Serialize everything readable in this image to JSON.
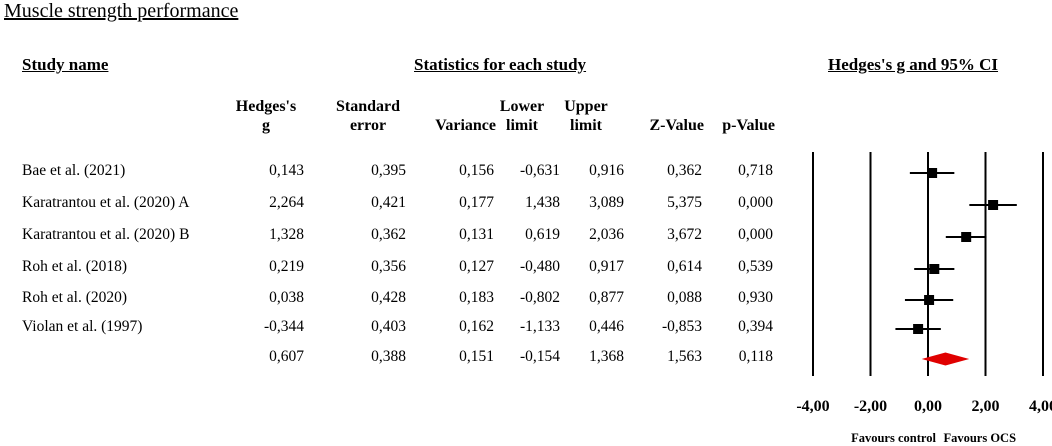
{
  "title": "Muscle strength performance",
  "headers": {
    "study_name": "Study name",
    "statistics": "Statistics for each study",
    "plot": "Hedges's g and 95% CI",
    "columns": [
      [
        "Hedges's",
        "g"
      ],
      [
        "Standard",
        "error"
      ],
      [
        "",
        "Variance"
      ],
      [
        "Lower",
        "limit"
      ],
      [
        "Upper",
        "limit"
      ],
      [
        "",
        "Z-Value"
      ],
      [
        "",
        "p-Value"
      ]
    ]
  },
  "chart_data": {
    "type": "forest",
    "xlim": [
      -4,
      4
    ],
    "xticks": [
      "-4,00",
      "-2,00",
      "0,00",
      "2,00",
      "4,00"
    ],
    "favours": [
      "Favours control",
      "Favours OCS"
    ],
    "rows": [
      {
        "study": "Bae et al. (2021)",
        "g": 0.143,
        "g_text": "0,143",
        "se": "0,395",
        "var": "0,156",
        "lower": -0.631,
        "lower_text": "-0,631",
        "upper": 0.916,
        "upper_text": "0,916",
        "z": "0,362",
        "p": "0,718"
      },
      {
        "study": "Karatrantou et al. (2020) A",
        "g": 2.264,
        "g_text": "2,264",
        "se": "0,421",
        "var": "0,177",
        "lower": 1.438,
        "lower_text": "1,438",
        "upper": 3.089,
        "upper_text": "3,089",
        "z": "5,375",
        "p": "0,000"
      },
      {
        "study": "Karatrantou et al. (2020) B",
        "g": 1.328,
        "g_text": "1,328",
        "se": "0,362",
        "var": "0,131",
        "lower": 0.619,
        "lower_text": "0,619",
        "upper": 2.036,
        "upper_text": "2,036",
        "z": "3,672",
        "p": "0,000"
      },
      {
        "study": "Roh et al. (2018)",
        "g": 0.219,
        "g_text": "0,219",
        "se": "0,356",
        "var": "0,127",
        "lower": -0.48,
        "lower_text": "-0,480",
        "upper": 0.917,
        "upper_text": "0,917",
        "z": "0,614",
        "p": "0,539"
      },
      {
        "study": "Roh et al. (2020)",
        "g": 0.038,
        "g_text": "0,038",
        "se": "0,428",
        "var": "0,183",
        "lower": -0.802,
        "lower_text": "-0,802",
        "upper": 0.877,
        "upper_text": "0,877",
        "z": "0,088",
        "p": "0,930"
      },
      {
        "study": "Violan et al. (1997)",
        "g": -0.344,
        "g_text": "-0,344",
        "se": "0,403",
        "var": "0,162",
        "lower": -1.133,
        "lower_text": "-1,133",
        "upper": 0.446,
        "upper_text": "0,446",
        "z": "-0,853",
        "p": "0,394"
      }
    ],
    "summary": {
      "study": "",
      "g": 0.607,
      "g_text": "0,607",
      "se": "0,388",
      "var": "0,151",
      "lower": -0.154,
      "lower_text": "-0,154",
      "upper": 1.368,
      "upper_text": "1,368",
      "z": "1,563",
      "p": "0,118"
    },
    "colors": {
      "marker": "#000000",
      "summary": "#e00000"
    }
  }
}
